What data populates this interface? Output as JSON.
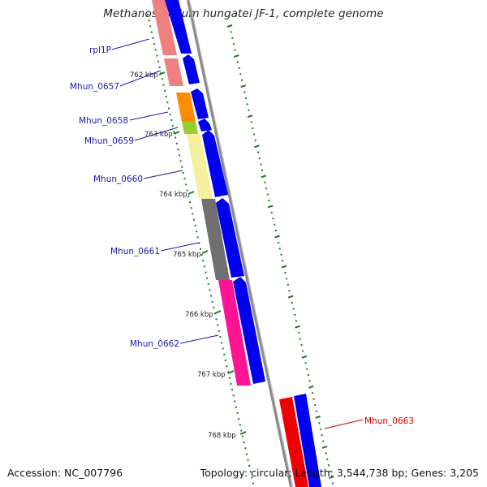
{
  "title": "Methanospirillum hungatei JF-1, complete genome",
  "footer": {
    "accession": "Accession: NC_007796",
    "summary": "Topology: circular; Length: 3,544,738 bp; Genes: 3,205"
  },
  "colors": {
    "strand": "#0000ee",
    "backbone": "#888888",
    "ticks": "#1a7a1a",
    "label_blue": "#1a1aa8",
    "label_red": "#cc0000"
  },
  "ticks": [
    {
      "label": "762 kbp"
    },
    {
      "label": "763 kbp"
    },
    {
      "label": "764 kbp"
    },
    {
      "label": "765 kbp"
    },
    {
      "label": "766 kbp"
    },
    {
      "label": "767 kbp"
    },
    {
      "label": "768 kbp"
    }
  ],
  "genes": [
    {
      "name": "rpl1P",
      "color": "#f08080"
    },
    {
      "name": "Mhun_0657",
      "color": "#f08080"
    },
    {
      "name": "Mhun_0658",
      "color": "#ff8c00"
    },
    {
      "name": "Mhun_0659",
      "color": "#9acd32"
    },
    {
      "name": "Mhun_0660",
      "color": "#f5f0a0"
    },
    {
      "name": "Mhun_0661",
      "color": "#707070"
    },
    {
      "name": "Mhun_0662",
      "color": "#ff1493"
    },
    {
      "name": "Mhun_0663",
      "color": "#ee0000"
    }
  ]
}
